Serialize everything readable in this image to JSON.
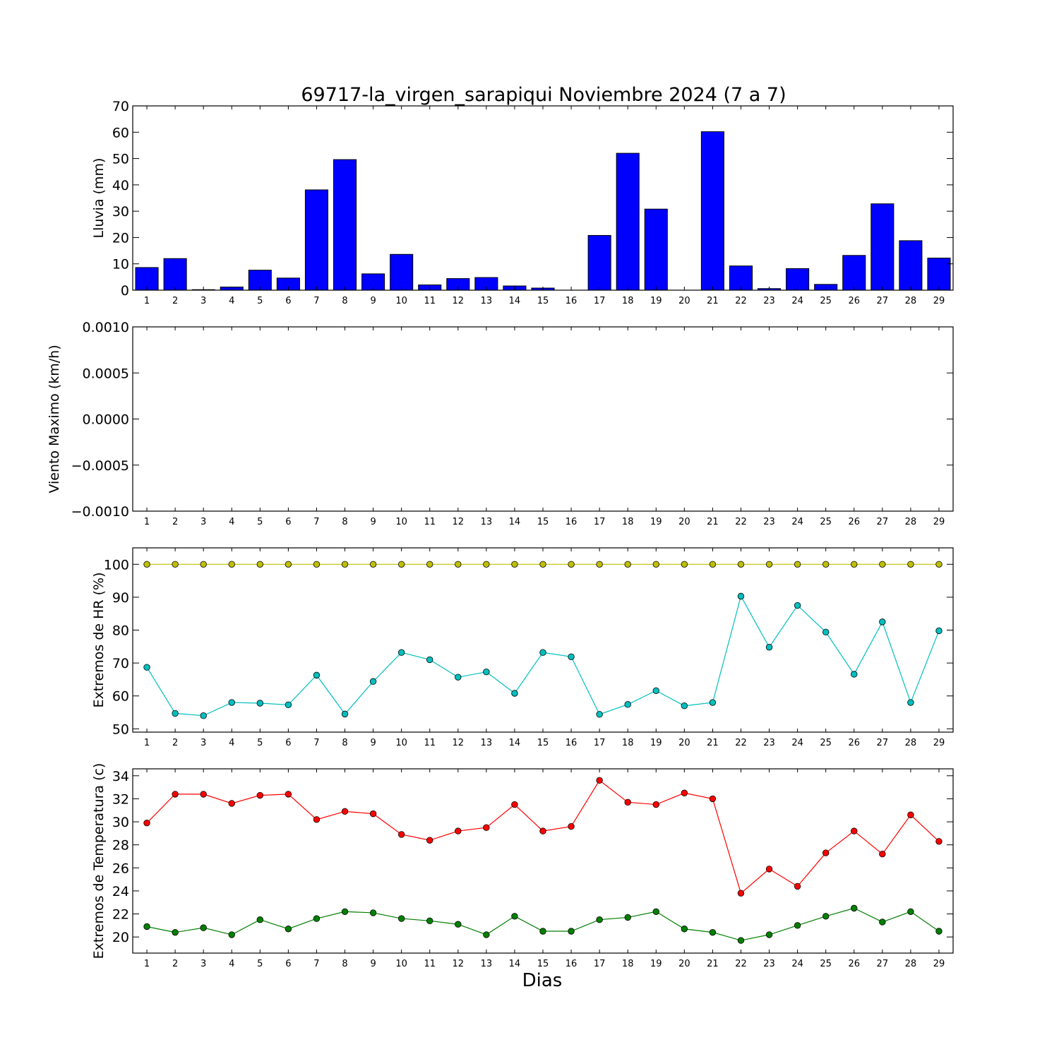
{
  "chart_data": {
    "title": "69717-la_virgen_sarapiqui Noviembre 2024  (7 a 7)",
    "xlabel": "Dias",
    "days": [
      1,
      2,
      3,
      4,
      5,
      6,
      7,
      8,
      9,
      10,
      11,
      12,
      13,
      14,
      15,
      16,
      17,
      18,
      19,
      20,
      21,
      22,
      23,
      24,
      25,
      26,
      27,
      28,
      29
    ],
    "x_tick_labels": [
      "1",
      "2",
      "3",
      "4",
      "5",
      "6",
      "7",
      "8",
      "9",
      "10",
      "11",
      "12",
      "13",
      "14",
      "15",
      "16",
      "17",
      "18",
      "19",
      "20",
      "21",
      "22",
      "23",
      "24",
      "25",
      "26",
      "27",
      "28",
      "29"
    ],
    "panels": [
      {
        "type": "bar",
        "ylabel": "Lluvia (mm)",
        "ylim": [
          0,
          70
        ],
        "yticks": [
          0,
          10,
          20,
          30,
          40,
          50,
          60,
          70
        ],
        "ytick_labels": [
          "0",
          "10",
          "20",
          "30",
          "40",
          "50",
          "60",
          "70"
        ],
        "series": [
          {
            "color": "#0000ff",
            "values": [
              8.6,
              12.0,
              0.2,
              1.2,
              7.6,
              4.6,
              38.1,
              49.6,
              6.2,
              13.6,
              2.0,
              4.4,
              4.8,
              1.6,
              0.8,
              0.0,
              20.8,
              52.0,
              30.8,
              0.0,
              60.2,
              9.2,
              0.6,
              8.2,
              2.2,
              13.2,
              32.8,
              18.8,
              12.2
            ]
          }
        ]
      },
      {
        "type": "line",
        "ylabel": "Viento Maximo (km/h)",
        "ylim": [
          -0.001,
          0.001
        ],
        "yticks": [
          -0.001,
          -0.0005,
          0.0,
          0.0005,
          0.001
        ],
        "ytick_labels": [
          "−0.0010",
          "−0.0005",
          "0.0000",
          "0.0005",
          "0.0010"
        ],
        "series": []
      },
      {
        "type": "line",
        "ylabel": "Extremos de HR (%)",
        "ylim": [
          49,
          105
        ],
        "yticks": [
          50,
          60,
          70,
          80,
          90,
          100
        ],
        "ytick_labels": [
          "50",
          "60",
          "70",
          "80",
          "90",
          "100"
        ],
        "series": [
          {
            "color": "#bfbf00",
            "values": [
              100,
              100,
              100,
              100,
              100,
              100,
              100,
              100,
              100,
              100,
              100,
              100,
              100,
              100,
              100,
              100,
              100,
              100,
              100,
              100,
              100,
              100,
              100,
              100,
              100,
              100,
              100,
              100,
              100
            ]
          },
          {
            "color": "#00bfbf",
            "values": [
              68.7,
              54.7,
              54.0,
              58.0,
              57.8,
              57.3,
              66.3,
              54.5,
              64.4,
              73.2,
              71.0,
              65.7,
              67.3,
              60.8,
              73.2,
              71.9,
              54.4,
              57.4,
              61.6,
              57.0,
              58.0,
              90.3,
              74.8,
              87.5,
              79.4,
              66.6,
              82.5,
              58.0,
              79.8
            ]
          }
        ]
      },
      {
        "type": "line",
        "ylabel": "Extremos de Temperatura (c)",
        "ylim": [
          18.6,
          34.6
        ],
        "yticks": [
          20,
          22,
          24,
          26,
          28,
          30,
          32,
          34
        ],
        "ytick_labels": [
          "20",
          "22",
          "24",
          "26",
          "28",
          "30",
          "32",
          "34"
        ],
        "series": [
          {
            "color": "#ff0000",
            "values": [
              29.9,
              32.4,
              32.4,
              31.6,
              32.3,
              32.4,
              30.2,
              30.9,
              30.7,
              28.9,
              28.4,
              29.2,
              29.5,
              31.5,
              29.2,
              29.6,
              33.6,
              31.7,
              31.5,
              32.5,
              32.0,
              23.8,
              25.9,
              24.4,
              27.3,
              29.2,
              27.2,
              30.6,
              28.3
            ]
          },
          {
            "color": "#008000",
            "values": [
              20.9,
              20.4,
              20.8,
              20.2,
              21.5,
              20.7,
              21.6,
              22.2,
              22.1,
              21.6,
              21.4,
              21.1,
              20.2,
              21.8,
              20.5,
              20.5,
              21.5,
              21.7,
              22.2,
              20.7,
              20.4,
              19.7,
              20.2,
              21.0,
              21.8,
              22.5,
              21.3,
              22.2,
              20.5
            ]
          }
        ]
      }
    ]
  }
}
